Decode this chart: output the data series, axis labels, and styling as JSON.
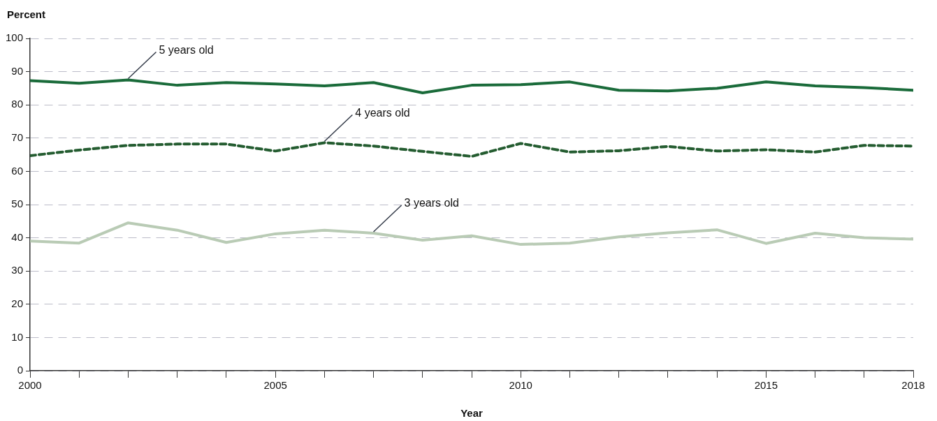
{
  "chart_data": {
    "type": "line",
    "ylabel": "Percent",
    "xlabel": "Year",
    "x": [
      2000,
      2001,
      2002,
      2003,
      2004,
      2005,
      2006,
      2007,
      2008,
      2009,
      2010,
      2011,
      2012,
      2013,
      2014,
      2015,
      2016,
      2017,
      2018
    ],
    "xlim": [
      2000,
      2018
    ],
    "xticks": [
      2000,
      {
        "value": 2001,
        "label": null
      },
      {
        "value": 2002,
        "label": null
      },
      {
        "value": 2003,
        "label": null
      },
      {
        "value": 2004,
        "label": null
      },
      2005,
      {
        "value": 2006,
        "label": null
      },
      {
        "value": 2007,
        "label": null
      },
      {
        "value": 2008,
        "label": null
      },
      {
        "value": 2009,
        "label": null
      },
      2010,
      {
        "value": 2011,
        "label": null
      },
      {
        "value": 2012,
        "label": null
      },
      {
        "value": 2013,
        "label": null
      },
      {
        "value": 2014,
        "label": null
      },
      2015,
      {
        "value": 2016,
        "label": null
      },
      {
        "value": 2017,
        "label": null
      },
      2018
    ],
    "ylim": [
      0,
      100
    ],
    "yticks": [
      0,
      10,
      20,
      30,
      40,
      50,
      60,
      70,
      80,
      90,
      100
    ],
    "grid": "y",
    "legend": false,
    "marker": "none",
    "series": [
      {
        "color": "#1a6b3a",
        "line_style": "solid",
        "values": [
          87.3,
          86.5,
          87.5,
          85.9,
          86.7,
          86.3,
          85.7,
          86.7,
          83.6,
          85.9,
          86.1,
          86.9,
          84.4,
          84.2,
          85.0,
          86.9,
          85.7,
          85.2,
          84.4
        ]
      },
      {
        "color": "#245c30",
        "line_style": "dashed",
        "values": [
          64.7,
          66.4,
          67.8,
          68.2,
          68.2,
          66.1,
          68.6,
          67.6,
          66.0,
          64.5,
          68.4,
          65.8,
          66.2,
          67.5,
          66.1,
          66.5,
          65.8,
          67.8,
          67.6
        ]
      },
      {
        "color": "#b9cbb5",
        "line_style": "solid",
        "values": [
          39.0,
          38.4,
          44.5,
          42.3,
          38.6,
          41.2,
          42.3,
          41.4,
          39.3,
          40.6,
          38.0,
          38.4,
          40.3,
          41.5,
          42.4,
          38.3,
          41.4,
          40.0,
          39.6
        ]
      }
    ],
    "annotations": [
      {
        "text": "5 years old",
        "x": 2002,
        "y": 87.5
      },
      {
        "text": "4 years old",
        "x": 2006,
        "y": 68.6
      },
      {
        "text": "3 years old",
        "x": 2007,
        "y": 41.4
      }
    ]
  }
}
